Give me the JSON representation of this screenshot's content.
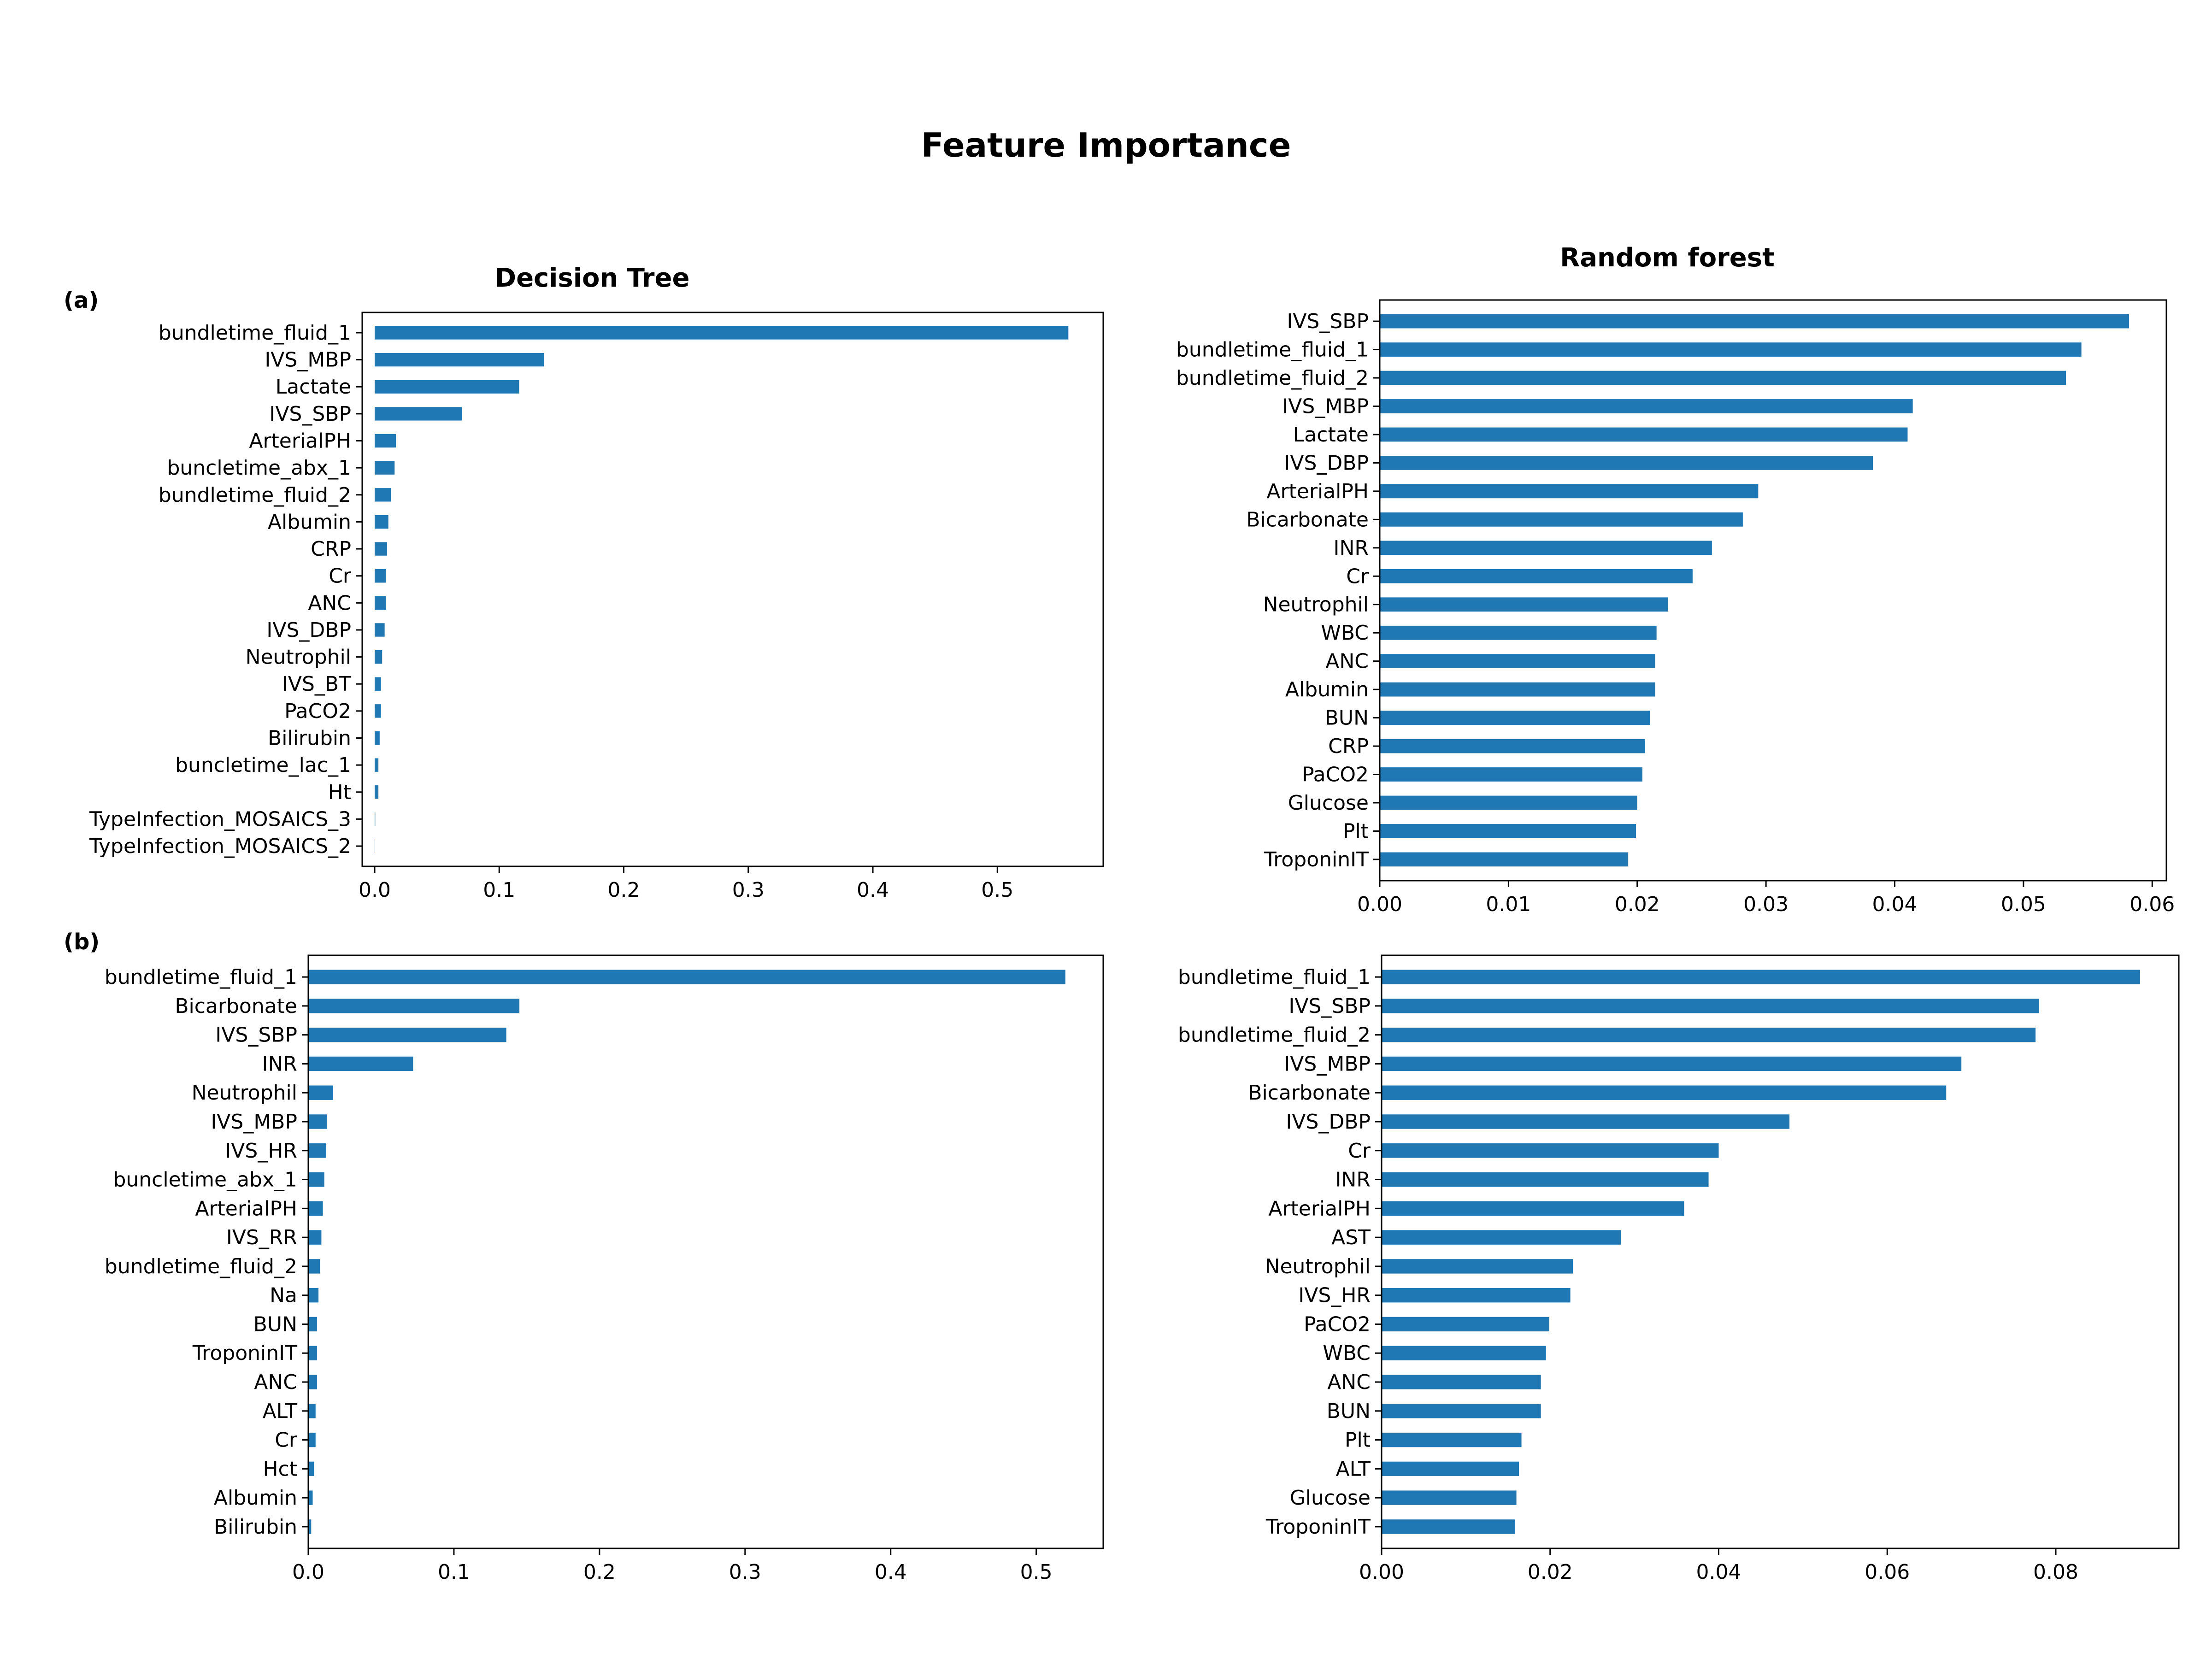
{
  "figure": {
    "title": "Feature Importance",
    "panel_labels": [
      "(a)",
      "(b)"
    ]
  },
  "chart_data": [
    {
      "type": "bar",
      "orientation": "horizontal",
      "title": "Decision Tree",
      "panel_label": "(a)",
      "categories": [
        "bundletime_fluid_1",
        "IVS_MBP",
        "Lactate",
        "IVS_SBP",
        "ArterialPH",
        "buncletime_abx_1",
        "bundletime_fluid_2",
        "Albumin",
        "CRP",
        "Cr",
        "ANC",
        "IVS_DBP",
        "Neutrophil",
        "IVS_BT",
        "PaCO2",
        "Bilirubin",
        "buncletime_lac_1",
        "Ht",
        "TypeInfection_MOSAICS_3",
        "TypeInfection_MOSAICS_2"
      ],
      "values": [
        0.557,
        0.136,
        0.116,
        0.07,
        0.017,
        0.016,
        0.013,
        0.011,
        0.01,
        0.009,
        0.009,
        0.008,
        0.006,
        0.005,
        0.005,
        0.004,
        0.003,
        0.003,
        0.0005,
        0.0003
      ],
      "xlim": [
        -0.01,
        0.585
      ],
      "xticks": [
        0.0,
        0.1,
        0.2,
        0.3,
        0.4,
        0.5
      ],
      "xtick_labels": [
        "0.0",
        "0.1",
        "0.2",
        "0.3",
        "0.4",
        "0.5"
      ],
      "color": "#1f77b4",
      "xlabel": "",
      "ylabel": ""
    },
    {
      "type": "bar",
      "orientation": "horizontal",
      "title": "Random forest",
      "panel_label": "",
      "categories": [
        "IVS_SBP",
        "bundletime_fluid_1",
        "bundletime_fluid_2",
        "IVS_MBP",
        "Lactate",
        "IVS_DBP",
        "ArterialPH",
        "Bicarbonate",
        "INR",
        "Cr",
        "Neutrophil",
        "WBC",
        "ANC",
        "Albumin",
        "BUN",
        "CRP",
        "PaCO2",
        "Glucose",
        "Plt",
        "TroponinIT"
      ],
      "values": [
        0.0582,
        0.0545,
        0.0533,
        0.0414,
        0.041,
        0.0383,
        0.0294,
        0.0282,
        0.0258,
        0.0243,
        0.0224,
        0.0215,
        0.0214,
        0.0214,
        0.021,
        0.0206,
        0.0204,
        0.02,
        0.0199,
        0.0193
      ],
      "xlim": [
        0,
        0.0611
      ],
      "xticks": [
        0.0,
        0.01,
        0.02,
        0.03,
        0.04,
        0.05,
        0.06
      ],
      "xtick_labels": [
        "0.00",
        "0.01",
        "0.02",
        "0.03",
        "0.04",
        "0.05",
        "0.06"
      ],
      "color": "#1f77b4",
      "xlabel": "",
      "ylabel": ""
    },
    {
      "type": "bar",
      "orientation": "horizontal",
      "title": "",
      "panel_label": "(b)",
      "categories": [
        "bundletime_fluid_1",
        "Bicarbonate",
        "IVS_SBP",
        "INR",
        "Neutrophil",
        "IVS_MBP",
        "IVS_HR",
        "buncletime_abx_1",
        "ArterialPH",
        "IVS_RR",
        "bundletime_fluid_2",
        "Na",
        "BUN",
        "TroponinIT",
        "ANC",
        "ALT",
        "Cr",
        "Hct",
        "Albumin",
        "Bilirubin"
      ],
      "values": [
        0.52,
        0.145,
        0.136,
        0.072,
        0.017,
        0.013,
        0.012,
        0.011,
        0.01,
        0.009,
        0.008,
        0.007,
        0.006,
        0.006,
        0.006,
        0.005,
        0.005,
        0.004,
        0.003,
        0.002
      ],
      "xlim": [
        0,
        0.546
      ],
      "xticks": [
        0.0,
        0.1,
        0.2,
        0.3,
        0.4,
        0.5
      ],
      "xtick_labels": [
        "0.0",
        "0.1",
        "0.2",
        "0.3",
        "0.4",
        "0.5"
      ],
      "color": "#1f77b4",
      "xlabel": "",
      "ylabel": ""
    },
    {
      "type": "bar",
      "orientation": "horizontal",
      "title": "",
      "panel_label": "",
      "categories": [
        "bundletime_fluid_1",
        "IVS_SBP",
        "bundletime_fluid_2",
        "IVS_MBP",
        "Bicarbonate",
        "IVS_DBP",
        "Cr",
        "INR",
        "ArterialPH",
        "AST",
        "Neutrophil",
        "IVS_HR",
        "PaCO2",
        "WBC",
        "ANC",
        "BUN",
        "Plt",
        "ALT",
        "Glucose",
        "TroponinIT"
      ],
      "values": [
        0.09,
        0.078,
        0.0776,
        0.0688,
        0.067,
        0.0484,
        0.04,
        0.0388,
        0.0359,
        0.0284,
        0.0227,
        0.0224,
        0.0199,
        0.0195,
        0.0189,
        0.0189,
        0.0166,
        0.0163,
        0.016,
        0.0158
      ],
      "xlim": [
        0,
        0.0946
      ],
      "xticks": [
        0.0,
        0.02,
        0.04,
        0.06,
        0.08
      ],
      "xtick_labels": [
        "0.00",
        "0.02",
        "0.04",
        "0.06",
        "0.08"
      ],
      "color": "#1f77b4",
      "xlabel": "",
      "ylabel": ""
    }
  ]
}
